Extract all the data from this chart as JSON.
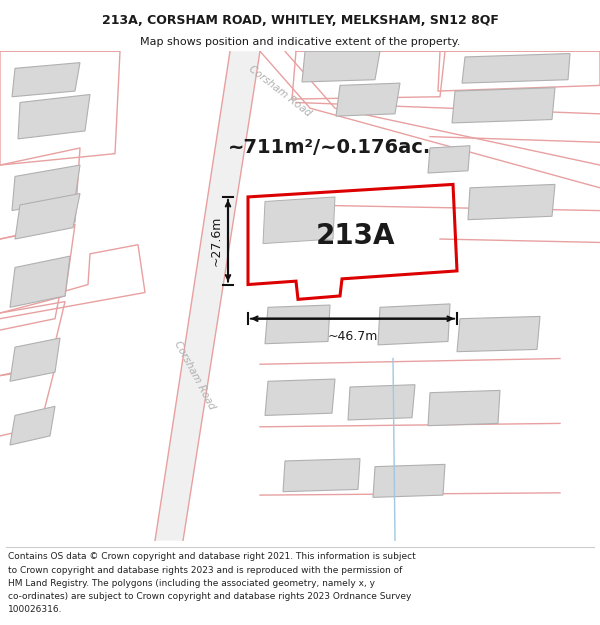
{
  "title_line1": "213A, CORSHAM ROAD, WHITLEY, MELKSHAM, SN12 8QF",
  "title_line2": "Map shows position and indicative extent of the property.",
  "footer_lines": [
    "Contains OS data © Crown copyright and database right 2021. This information is subject",
    "to Crown copyright and database rights 2023 and is reproduced with the permission of",
    "HM Land Registry. The polygons (including the associated geometry, namely x, y",
    "co-ordinates) are subject to Crown copyright and database rights 2023 Ordnance Survey",
    "100026316."
  ],
  "area_label": "~711m²/~0.176ac.",
  "width_label": "~46.7m",
  "height_label": "~27.6m",
  "plot_label": "213A",
  "bg_color": "#ffffff",
  "building_color": "#d8d8d8",
  "building_edge": "#b0b0b0",
  "plot_edge_color": "#dd0000",
  "pink_line_color": "#e8a0a0",
  "road_label_color": "#b0b0b0",
  "text_color": "#1a1a1a",
  "dimension_color": "#111111",
  "blue_line_color": "#a0c8e0",
  "figsize": [
    6.0,
    6.25
  ],
  "dpi": 100,
  "title_fontsize": 9.0,
  "subtitle_fontsize": 8.0,
  "footer_fontsize": 6.5,
  "area_fontsize": 14,
  "plot_label_fontsize": 20,
  "dim_fontsize": 9
}
